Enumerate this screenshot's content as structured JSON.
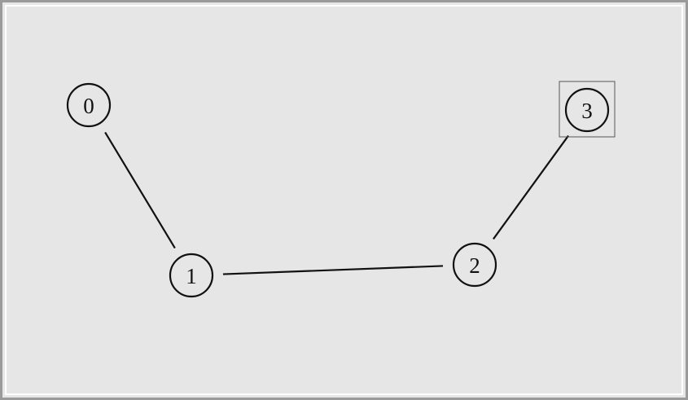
{
  "graph": {
    "nodes": [
      {
        "id": "0",
        "label": "0"
      },
      {
        "id": "1",
        "label": "1"
      },
      {
        "id": "2",
        "label": "2"
      },
      {
        "id": "3",
        "label": "3",
        "selected": true
      }
    ],
    "edges": [
      {
        "from": "0",
        "to": "1"
      },
      {
        "from": "1",
        "to": "2"
      },
      {
        "from": "2",
        "to": "3"
      }
    ]
  },
  "colors": {
    "background": "#e6e6e6",
    "stroke": "#111111",
    "selection_box": "#555555"
  }
}
